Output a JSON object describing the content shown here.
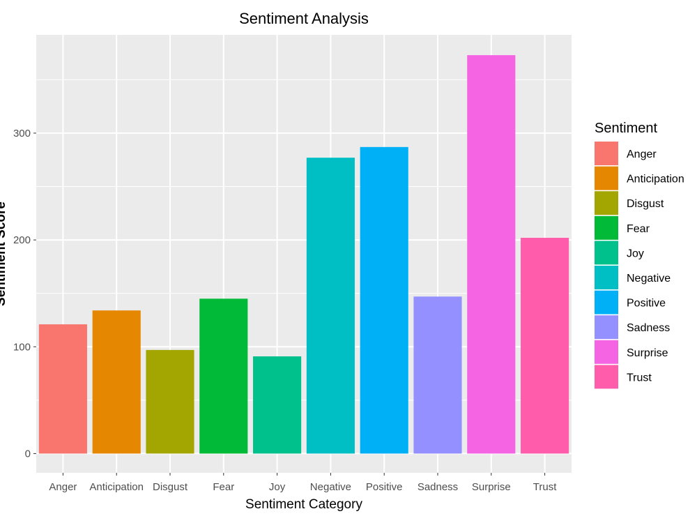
{
  "chart_data": {
    "type": "bar",
    "title": "Sentiment Analysis",
    "xlabel": "Sentiment Category",
    "ylabel": "Sentiment Score",
    "categories": [
      "Anger",
      "Anticipation",
      "Disgust",
      "Fear",
      "Joy",
      "Negative",
      "Positive",
      "Sadness",
      "Surprise",
      "Trust"
    ],
    "values": [
      121,
      134,
      97,
      145,
      91,
      277,
      287,
      147,
      373,
      202
    ],
    "colors": [
      "#F8766D",
      "#E58700",
      "#A3A500",
      "#00BA38",
      "#00C08B",
      "#00BFC4",
      "#00B0F6",
      "#9590FF",
      "#F564E3",
      "#FF5CAB"
    ],
    "ylim": [
      -18,
      392
    ],
    "yticks": [
      0,
      100,
      200,
      300
    ],
    "grid": true,
    "legend": {
      "title": "Sentiment",
      "placement": "right",
      "entries": [
        "Anger",
        "Anticipation",
        "Disgust",
        "Fear",
        "Joy",
        "Negative",
        "Positive",
        "Sadness",
        "Surprise",
        "Trust"
      ]
    },
    "background_color": "#EBEBEB",
    "grid_color": "#FFFFFF"
  }
}
